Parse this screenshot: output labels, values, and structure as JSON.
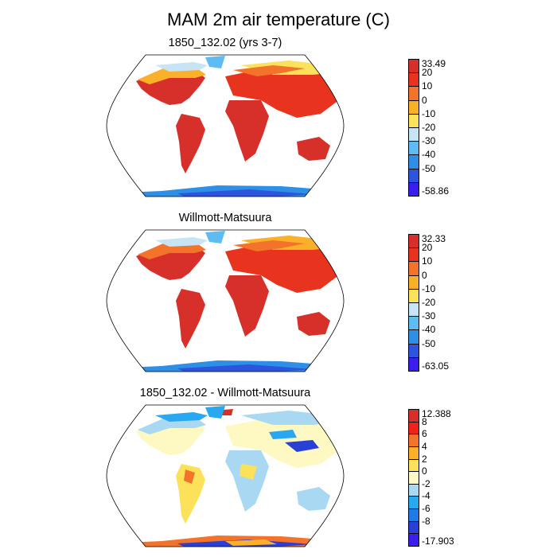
{
  "main_title": "MAM 2m air temperature (C)",
  "panels": [
    {
      "title": "1850_132.02 (yrs 3-7)",
      "colorbar": {
        "labels": [
          "33.49",
          "20",
          "10",
          "0",
          "-10",
          "-20",
          "-30",
          "-40",
          "-50",
          "-58.86"
        ],
        "colors": [
          "#d7302b",
          "#e8331e",
          "#f4732a",
          "#fbb02a",
          "#fbe25a",
          "#c6e4f4",
          "#5ebcf2",
          "#2e8fe6",
          "#2d54dc",
          "#3b1eef"
        ]
      }
    },
    {
      "title": "Willmott-Matsuura",
      "colorbar": {
        "labels": [
          "32.33",
          "20",
          "10",
          "0",
          "-10",
          "-20",
          "-30",
          "-40",
          "-50",
          "-63.05"
        ],
        "colors": [
          "#d7302b",
          "#e8331e",
          "#f4732a",
          "#fbb02a",
          "#fbe25a",
          "#c6e4f4",
          "#5ebcf2",
          "#2e8fe6",
          "#2d54dc",
          "#3b1eef"
        ]
      }
    },
    {
      "title": "1850_132.02 - Willmott-Matsuura",
      "colorbar": {
        "labels": [
          "12.388",
          "8",
          "6",
          "4",
          "2",
          "0",
          "-2",
          "-4",
          "-6",
          "-8",
          "-17.903"
        ],
        "colors": [
          "#d7302b",
          "#f0221a",
          "#f4732a",
          "#fbb02a",
          "#fbe25a",
          "#fef9c2",
          "#a9d8f2",
          "#27a8f0",
          "#1f7be6",
          "#2a3fd6",
          "#3b1eef"
        ]
      }
    }
  ]
}
